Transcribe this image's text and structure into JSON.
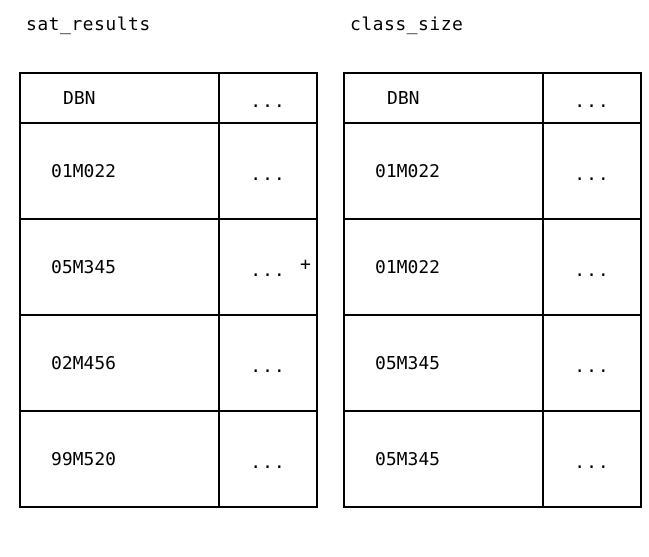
{
  "left_table": {
    "title": "sat_results",
    "header": {
      "key": "DBN",
      "rest": "..."
    },
    "rows": [
      {
        "key": "01M022",
        "rest": "..."
      },
      {
        "key": "05M345",
        "rest": "..."
      },
      {
        "key": "02M456",
        "rest": "..."
      },
      {
        "key": "99M520",
        "rest": "..."
      }
    ]
  },
  "operator": "+",
  "right_table": {
    "title": "class_size",
    "header": {
      "key": "DBN",
      "rest": "..."
    },
    "rows": [
      {
        "key": "01M022",
        "rest": "..."
      },
      {
        "key": "01M022",
        "rest": "..."
      },
      {
        "key": "05M345",
        "rest": "..."
      },
      {
        "key": "05M345",
        "rest": "..."
      }
    ]
  }
}
